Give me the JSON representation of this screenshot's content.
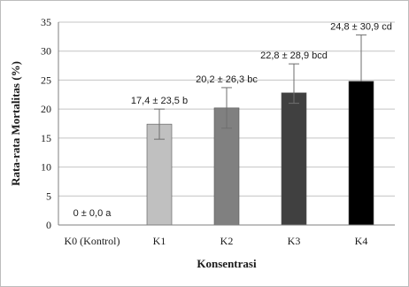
{
  "chart_data": {
    "type": "bar",
    "title": "",
    "xlabel": "Konsentrasi",
    "ylabel": "Rata-rata Mortalitas (%)",
    "categories": [
      "K0 (Kontrol)",
      "K1",
      "K2",
      "K3",
      "K4"
    ],
    "values": [
      0,
      17.4,
      20.2,
      22.8,
      24.8
    ],
    "error_plus": [
      0,
      2.6,
      3.5,
      5.0,
      8.0
    ],
    "error_minus": [
      0,
      2.6,
      3.5,
      1.8,
      0
    ],
    "data_labels": [
      "0 ± 0,0 a",
      "17,4 ± 23,5 b",
      "20,2 ± 26,3 bc",
      "22,8 ± 28,9 bcd",
      "24,8 ± 30,9 cd"
    ],
    "bar_colors": [
      "#d9d9d9",
      "#c0c0c0",
      "#808080",
      "#404040",
      "#000000"
    ],
    "ylim": [
      0,
      35
    ],
    "yticks": [
      0,
      5,
      10,
      15,
      20,
      25,
      30,
      35
    ],
    "grid": true,
    "legend": "none"
  }
}
